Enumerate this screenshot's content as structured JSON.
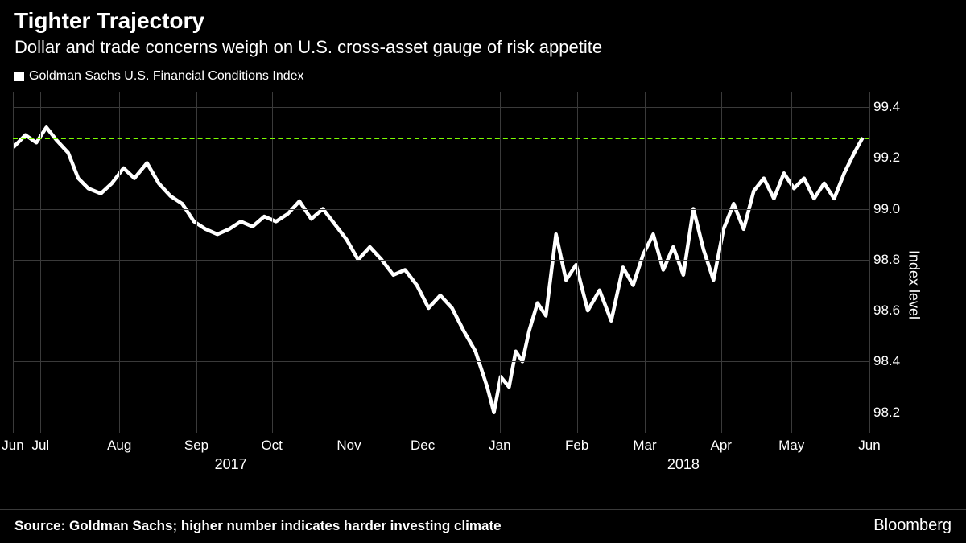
{
  "header": {
    "title": "Tighter Trajectory",
    "subtitle": "Dollar and trade concerns weigh on U.S. cross-asset gauge of risk appetite"
  },
  "legend": {
    "marker_color": "#ffffff",
    "label": "Goldman Sachs U.S. Financial Conditions Index"
  },
  "chart": {
    "type": "line",
    "background_color": "#000000",
    "grid_color": "#3a3a3a",
    "line_color": "#ffffff",
    "line_width": 2,
    "refline_color": "#7CFC00",
    "refline_value": 99.28,
    "yaxis": {
      "title": "Index level",
      "lim": [
        98.12,
        99.46
      ],
      "ticks": [
        98.2,
        98.4,
        98.6,
        98.8,
        99.0,
        99.2,
        99.4
      ],
      "tick_fontsize": 17,
      "side": "right"
    },
    "xaxis": {
      "months": [
        "Jun",
        "Jul",
        "Aug",
        "Sep",
        "Oct",
        "Nov",
        "Dec",
        "Jan",
        "Feb",
        "Mar",
        "Apr",
        "May",
        "Jun"
      ],
      "month_positions": [
        0.0,
        0.033,
        0.127,
        0.219,
        0.309,
        0.401,
        0.489,
        0.581,
        0.673,
        0.754,
        0.845,
        0.929,
        1.022
      ],
      "year_labels": [
        {
          "text": "2017",
          "position": 0.26
        },
        {
          "text": "2018",
          "position": 0.8
        }
      ]
    },
    "series_x": [
      0.0,
      0.015,
      0.028,
      0.04,
      0.052,
      0.066,
      0.078,
      0.09,
      0.105,
      0.118,
      0.132,
      0.145,
      0.16,
      0.174,
      0.188,
      0.202,
      0.216,
      0.23,
      0.244,
      0.258,
      0.272,
      0.286,
      0.3,
      0.314,
      0.328,
      0.342,
      0.356,
      0.37,
      0.384,
      0.398,
      0.412,
      0.426,
      0.44,
      0.454,
      0.468,
      0.482,
      0.496,
      0.51,
      0.524,
      0.538,
      0.552,
      0.566,
      0.574,
      0.582,
      0.592,
      0.6,
      0.608,
      0.616,
      0.626,
      0.636,
      0.648,
      0.66,
      0.672,
      0.686,
      0.7,
      0.714,
      0.728,
      0.74,
      0.752,
      0.764,
      0.776,
      0.788,
      0.8,
      0.812,
      0.824,
      0.836,
      0.848,
      0.86,
      0.872,
      0.884,
      0.896,
      0.908,
      0.92,
      0.932,
      0.944,
      0.956,
      0.968,
      0.98,
      0.992,
      1.004,
      1.014
    ],
    "series_y": [
      99.24,
      99.29,
      99.26,
      99.32,
      99.27,
      99.22,
      99.12,
      99.08,
      99.06,
      99.1,
      99.16,
      99.12,
      99.18,
      99.1,
      99.05,
      99.02,
      98.95,
      98.92,
      98.9,
      98.92,
      98.95,
      98.93,
      98.97,
      98.95,
      98.98,
      99.03,
      98.96,
      99.0,
      98.94,
      98.88,
      98.8,
      98.85,
      98.8,
      98.74,
      98.76,
      98.7,
      98.61,
      98.66,
      98.61,
      98.52,
      98.44,
      98.3,
      98.2,
      98.34,
      98.3,
      98.44,
      98.4,
      98.52,
      98.63,
      98.58,
      98.9,
      98.72,
      98.78,
      98.6,
      98.68,
      98.56,
      98.77,
      98.7,
      98.82,
      98.9,
      98.76,
      98.85,
      98.74,
      99.0,
      98.84,
      98.72,
      98.92,
      99.02,
      98.92,
      99.07,
      99.12,
      99.04,
      99.14,
      99.08,
      99.12,
      99.04,
      99.1,
      99.04,
      99.14,
      99.22,
      99.28
    ]
  },
  "footer": {
    "source": "Source: Goldman Sachs; higher number indicates harder investing climate",
    "brand": "Bloomberg"
  }
}
